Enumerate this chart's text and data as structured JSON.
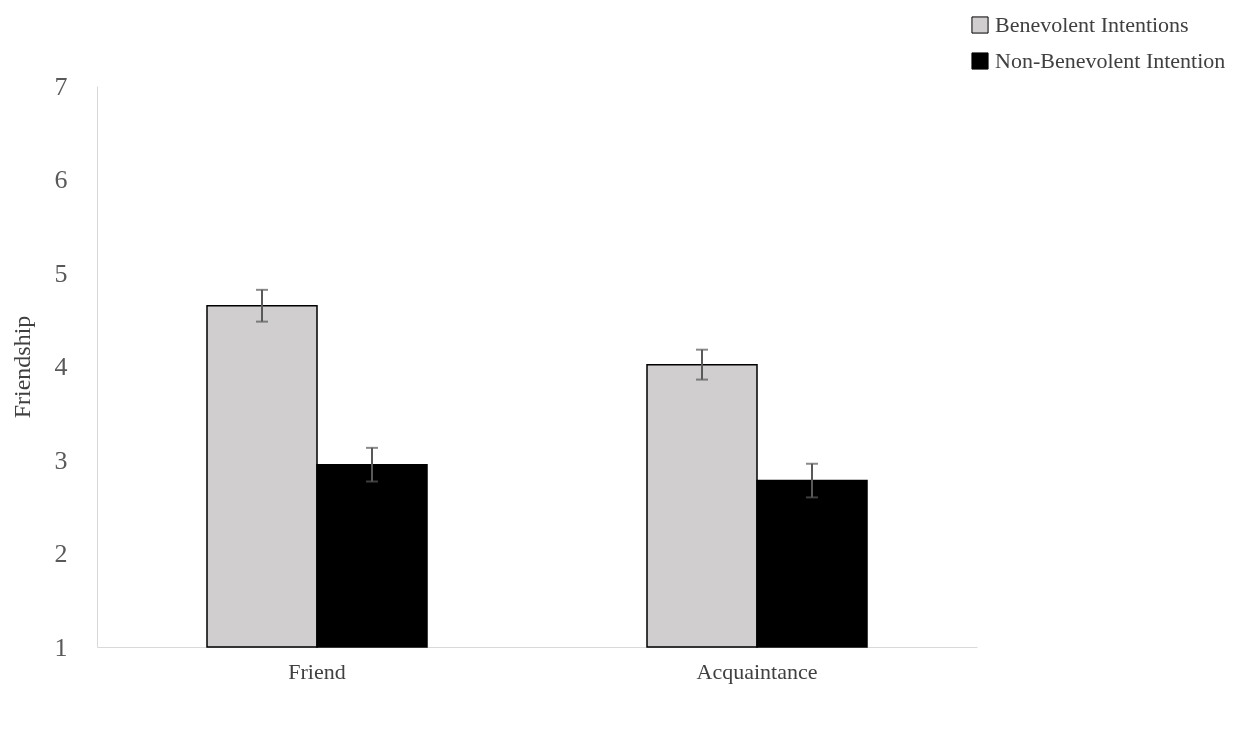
{
  "chart_data": {
    "type": "bar",
    "ylabel": "Friendship",
    "categories": [
      "Friend",
      "Acquaintance"
    ],
    "series": [
      {
        "name": "Benevolent Intentions",
        "color": "#d0cecf",
        "values": [
          4.65,
          4.02
        ],
        "errors": [
          0.17,
          0.16
        ]
      },
      {
        "name": "Non-Benevolent Intention",
        "color": "#000000",
        "values": [
          2.95,
          2.78
        ],
        "errors": [
          0.18,
          0.18
        ]
      }
    ],
    "ylim": [
      1,
      7
    ],
    "yticks": [
      1,
      2,
      3,
      4,
      5,
      6,
      7
    ],
    "grid": false,
    "legend": "top right"
  }
}
